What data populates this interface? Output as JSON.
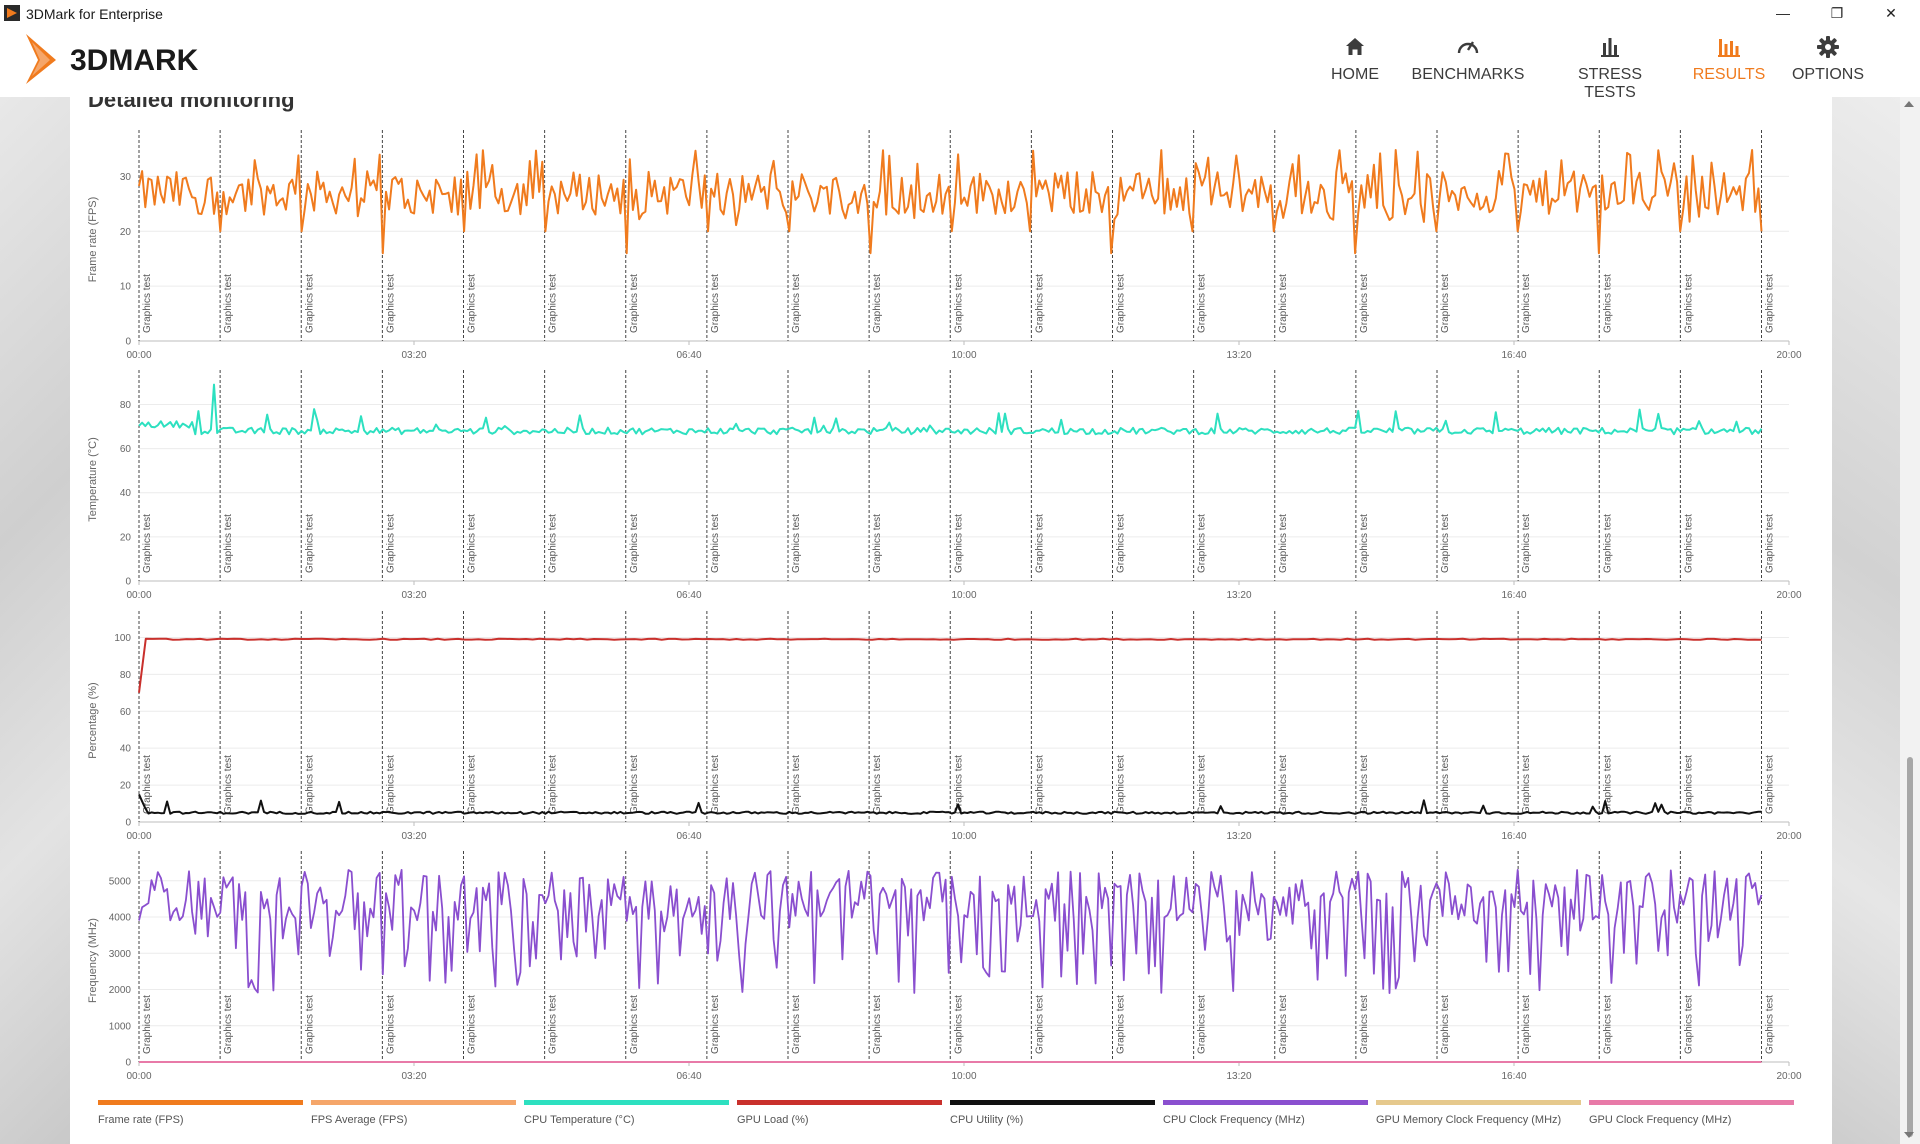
{
  "window": {
    "title": "3DMark for Enterprise",
    "minimize": "—",
    "maximize": "❐",
    "close": "✕"
  },
  "app": {
    "logo_text": "3DMARK"
  },
  "nav": {
    "items": [
      {
        "label": "HOME",
        "icon": "home-icon"
      },
      {
        "label": "BENCHMARKS",
        "icon": "gauge-icon"
      },
      {
        "label": "STRESS TESTS",
        "icon": "bar-chart-icon"
      },
      {
        "label": "RESULTS",
        "icon": "results-icon",
        "active": true
      },
      {
        "label": "OPTIONS",
        "icon": "gear-icon"
      }
    ],
    "accent_color": "#f07b1e"
  },
  "section": {
    "title": "Detailed monitoring"
  },
  "chart_data": [
    {
      "type": "line",
      "ylabel": "Frame rate (FPS)",
      "yticks": [
        0,
        10,
        20,
        30
      ],
      "ylim": [
        0,
        37
      ],
      "xticks": [
        "00:00",
        "03:20",
        "06:40",
        "10:00",
        "13:20",
        "16:40",
        "20:00"
      ],
      "xlim_seconds": [
        0,
        1200
      ],
      "markers_label": "Graphics test",
      "marker_times_seconds": [
        0,
        59,
        118,
        177,
        236,
        295,
        354,
        413,
        472,
        531,
        590,
        649,
        708,
        767,
        826,
        885,
        944,
        1003,
        1062,
        1121,
        1180
      ],
      "series": [
        {
          "name": "Frame rate (FPS)",
          "color": "#f07b1e",
          "profile": "fps",
          "base": 27,
          "amp": 4,
          "drop": 16,
          "spike": 35
        }
      ]
    },
    {
      "type": "line",
      "ylabel": "Temperature (°C)",
      "yticks": [
        0,
        20,
        40,
        60,
        80
      ],
      "ylim": [
        0,
        92
      ],
      "xticks": [
        "00:00",
        "03:20",
        "06:40",
        "10:00",
        "13:20",
        "16:40",
        "20:00"
      ],
      "xlim_seconds": [
        0,
        1200
      ],
      "markers_label": "Graphics test",
      "marker_times_seconds": [
        0,
        59,
        118,
        177,
        236,
        295,
        354,
        413,
        472,
        531,
        590,
        649,
        708,
        767,
        826,
        885,
        944,
        1003,
        1062,
        1121,
        1180
      ],
      "series": [
        {
          "name": "CPU Temperature (°C)",
          "color": "#2de0c0",
          "profile": "temp",
          "base": 68,
          "amp": 1.5,
          "spike": 78,
          "peak": 89
        }
      ]
    },
    {
      "type": "line",
      "ylabel": "Percentage (%)",
      "yticks": [
        0,
        20,
        40,
        60,
        80,
        100
      ],
      "ylim": [
        0,
        110
      ],
      "xticks": [
        "00:00",
        "03:20",
        "06:40",
        "10:00",
        "13:20",
        "16:40",
        "20:00"
      ],
      "xlim_seconds": [
        0,
        1200
      ],
      "markers_label": "Graphics test",
      "marker_times_seconds": [
        0,
        59,
        118,
        177,
        236,
        295,
        354,
        413,
        472,
        531,
        590,
        649,
        708,
        767,
        826,
        885,
        944,
        1003,
        1062,
        1121,
        1180
      ],
      "series": [
        {
          "name": "GPU Load (%)",
          "color": "#c9302c",
          "profile": "gpu",
          "base": 99,
          "start": 70
        },
        {
          "name": "CPU Utility (%)",
          "color": "#111111",
          "profile": "cpu",
          "base": 5,
          "start": 15,
          "spike": 12
        }
      ]
    },
    {
      "type": "line",
      "ylabel": "Frequency (MHz)",
      "yticks": [
        0,
        1000,
        2000,
        3000,
        4000,
        5000
      ],
      "ylim": [
        0,
        5600
      ],
      "xticks": [
        "00:00",
        "03:20",
        "06:40",
        "10:00",
        "13:20",
        "16:40",
        "20:00"
      ],
      "xlim_seconds": [
        0,
        1200
      ],
      "markers_label": "Graphics test",
      "marker_times_seconds": [
        0,
        59,
        118,
        177,
        236,
        295,
        354,
        413,
        472,
        531,
        590,
        649,
        708,
        767,
        826,
        885,
        944,
        1003,
        1062,
        1121,
        1180
      ],
      "series": [
        {
          "name": "CPU Clock Frequency (MHz)",
          "color": "#8a4fcf",
          "profile": "freq",
          "base": 4600,
          "amp": 700,
          "drop": 2000
        },
        {
          "name": "GPU Clock Frequency (MHz)",
          "color": "#e87aa8",
          "profile": "flat",
          "base": 0
        }
      ]
    }
  ],
  "legend": [
    {
      "label": "Frame rate (FPS)",
      "color": "#f07b1e"
    },
    {
      "label": "FPS Average (FPS)",
      "color": "#f5a66a"
    },
    {
      "label": "CPU Temperature (°C)",
      "color": "#2de0c0"
    },
    {
      "label": "GPU Load (%)",
      "color": "#c9302c"
    },
    {
      "label": "CPU Utility (%)",
      "color": "#111111"
    },
    {
      "label": "CPU Clock Frequency (MHz)",
      "color": "#8a4fcf"
    },
    {
      "label": "GPU Memory Clock Frequency (MHz)",
      "color": "#e6c98d"
    },
    {
      "label": "GPU Clock Frequency (MHz)",
      "color": "#e87aa8"
    }
  ]
}
